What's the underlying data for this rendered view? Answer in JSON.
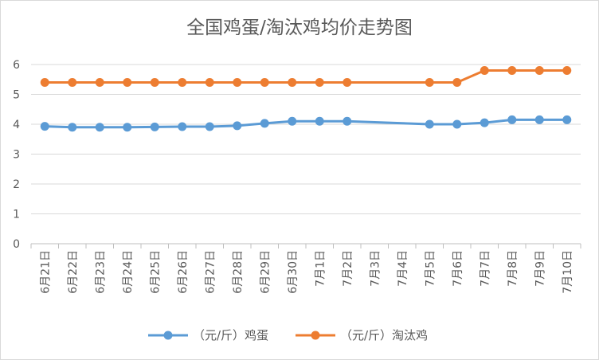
{
  "chart_data": {
    "type": "line",
    "title": "全国鸡蛋/淘汰鸡均价走势图",
    "xlabel": "",
    "ylabel": "",
    "ylim": [
      0,
      6
    ],
    "yticks": [
      0,
      1,
      2,
      3,
      4,
      5,
      6
    ],
    "grid": "horizontal",
    "legend_position": "bottom",
    "categories": [
      "6月21日",
      "6月22日",
      "6月23日",
      "6月24日",
      "6月25日",
      "6月26日",
      "6月27日",
      "6月28日",
      "6月29日",
      "6月30日",
      "7月1日",
      "7月2日",
      "7月3日",
      "7月4日",
      "7月5日",
      "7月6日",
      "7月7日",
      "7月8日",
      "7月9日",
      "7月10日"
    ],
    "series": [
      {
        "name": "（元/斤）鸡蛋",
        "color": "#5b9bd5",
        "values": [
          3.93,
          3.9,
          3.9,
          3.9,
          3.91,
          3.92,
          3.92,
          3.95,
          4.03,
          4.1,
          4.1,
          4.1,
          null,
          null,
          4.0,
          4.0,
          4.05,
          4.15,
          4.15,
          4.15
        ]
      },
      {
        "name": "（元/斤）淘汰鸡",
        "color": "#ed7d31",
        "values": [
          5.4,
          5.4,
          5.4,
          5.4,
          5.4,
          5.4,
          5.4,
          5.4,
          5.4,
          5.4,
          5.4,
          5.4,
          null,
          null,
          5.4,
          5.4,
          5.8,
          5.8,
          5.8,
          5.8
        ]
      }
    ]
  }
}
